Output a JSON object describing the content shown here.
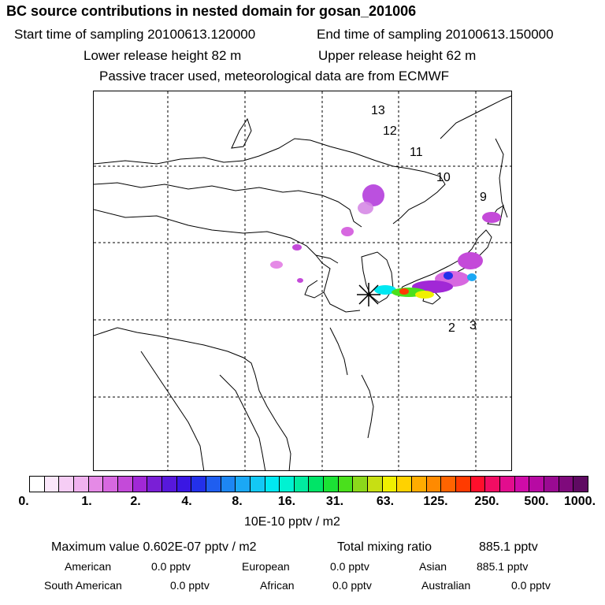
{
  "header": {
    "title": "BC  source contributions in nested domain for gosan_201006",
    "start_label": "Start time of sampling 20100613.120000",
    "end_label": "End time of sampling 20100613.150000",
    "lower_label": "Lower release height   82 m",
    "upper_label": "Upper release height   62 m",
    "note": "Passive tracer used, meteorological data are from ECMWF"
  },
  "map": {
    "time_markers": [
      "13",
      "12",
      "11",
      "10",
      "9",
      "3",
      "2"
    ]
  },
  "colorbar": {
    "tick_labels": [
      "0.",
      "1.",
      "2.",
      "4.",
      "8.",
      "16.",
      "31.",
      "63.",
      "125.",
      "250.",
      "500.",
      "1000."
    ],
    "colors": [
      "#ffffff",
      "#fbe7fb",
      "#f6cdf5",
      "#f0b2ef",
      "#e58ae6",
      "#d768e0",
      "#c44ad9",
      "#a128d6",
      "#7a1fd6",
      "#5718db",
      "#3a17e3",
      "#2330ea",
      "#1f5ef0",
      "#1d86f3",
      "#1ba8f5",
      "#13c8f5",
      "#00e8f2",
      "#00f2d2",
      "#00eca0",
      "#00e467",
      "#1be235",
      "#4ae01c",
      "#8cd81b",
      "#c7df13",
      "#f0f000",
      "#ffd200",
      "#ffac00",
      "#ff8a00",
      "#ff6400",
      "#ff3b00",
      "#ff0f2c",
      "#f10d63",
      "#e20d8e",
      "#cf0ba8",
      "#b70aa3",
      "#9a0a92",
      "#7f0a7c",
      "#5f0a62"
    ],
    "units": "10E-10 pptv / m2"
  },
  "stats": {
    "max_label": "Maximum value  0.602E-07 pptv / m2",
    "total_label": "Total mixing ratio",
    "total_value": "885.1 pptv",
    "regions": [
      {
        "name": "American",
        "value": "0.0 pptv"
      },
      {
        "name": "European",
        "value": "0.0 pptv"
      },
      {
        "name": "Asian",
        "value": "885.1 pptv"
      },
      {
        "name": "South American",
        "value": "0.0 pptv"
      },
      {
        "name": "African",
        "value": "0.0 pptv"
      },
      {
        "name": "Australian",
        "value": "0.0 pptv"
      }
    ]
  }
}
